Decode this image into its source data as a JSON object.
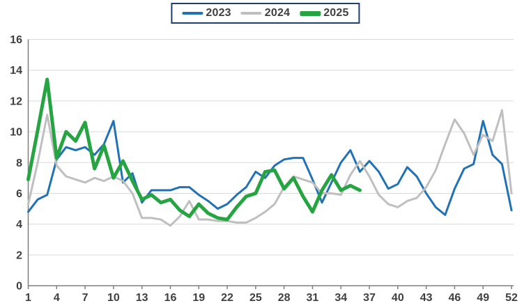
{
  "page": {
    "background": "#ffffff"
  },
  "legend": {
    "border_color": "#1f3d6d",
    "items": [
      {
        "label": "2023",
        "color": "#2171b5"
      },
      {
        "label": "2024",
        "color": "#bfbfbf"
      },
      {
        "label": "2025",
        "color": "#26a442"
      }
    ]
  },
  "chart_data": {
    "type": "line",
    "title": "",
    "xlabel": "",
    "ylabel": "",
    "x_unit": "week",
    "x_range": [
      1,
      52
    ],
    "ylim": [
      0,
      16
    ],
    "grid": true,
    "legend_position": "top-center",
    "x_ticks": [
      1,
      4,
      7,
      10,
      13,
      16,
      19,
      22,
      25,
      28,
      31,
      34,
      37,
      40,
      43,
      46,
      49,
      52
    ],
    "y_ticks": [
      0,
      2,
      4,
      6,
      8,
      10,
      12,
      14,
      16
    ],
    "axis_color": "#7f7f7f",
    "grid_color": "#d9d9d9",
    "tick_label_color": "#404040",
    "series": [
      {
        "name": "2023",
        "color": "#2171b5",
        "width": 3,
        "values": [
          4.8,
          5.6,
          5.9,
          8.2,
          9.0,
          8.8,
          9.0,
          8.5,
          9.2,
          10.7,
          6.7,
          7.3,
          5.4,
          6.2,
          6.2,
          6.2,
          6.4,
          6.4,
          5.9,
          5.5,
          5.0,
          5.3,
          5.9,
          6.4,
          7.4,
          7.0,
          7.8,
          8.2,
          8.3,
          8.3,
          6.9,
          5.4,
          6.7,
          8.0,
          8.8,
          7.4,
          8.1,
          7.4,
          6.3,
          6.6,
          7.7,
          7.1,
          6.0,
          5.1,
          4.6,
          6.3,
          7.6,
          7.9,
          10.7,
          8.5,
          7.9,
          4.9
        ]
      },
      {
        "name": "2024",
        "color": "#bfbfbf",
        "width": 3,
        "values": [
          5.3,
          8.0,
          11.1,
          7.8,
          7.1,
          6.9,
          6.7,
          7.0,
          6.8,
          7.1,
          6.8,
          6.0,
          4.4,
          4.4,
          4.3,
          3.9,
          4.5,
          5.5,
          4.3,
          4.3,
          4.2,
          4.2,
          4.1,
          4.1,
          4.4,
          4.8,
          5.3,
          6.4,
          7.1,
          6.9,
          6.7,
          6.0,
          6.0,
          5.9,
          7.2,
          8.1,
          7.1,
          5.9,
          5.3,
          5.1,
          5.5,
          5.7,
          6.4,
          7.5,
          9.2,
          10.8,
          9.9,
          8.5,
          9.8,
          9.4,
          11.4,
          6.0
        ]
      },
      {
        "name": "2025",
        "color": "#26a442",
        "width": 5,
        "values": [
          6.9,
          10.1,
          13.4,
          8.3,
          10.0,
          9.4,
          10.6,
          7.6,
          9.1,
          7.0,
          8.1,
          6.8,
          5.6,
          5.9,
          5.4,
          5.6,
          4.9,
          4.5,
          5.3,
          4.7,
          4.4,
          4.3,
          5.1,
          5.8,
          6.0,
          7.4,
          7.5,
          6.3,
          7.0,
          5.8,
          4.8,
          6.2,
          7.2,
          6.2,
          6.5,
          6.2,
          null,
          null,
          null,
          null,
          null,
          null,
          null,
          null,
          null,
          null,
          null,
          null,
          null,
          null,
          null,
          null
        ]
      }
    ]
  }
}
